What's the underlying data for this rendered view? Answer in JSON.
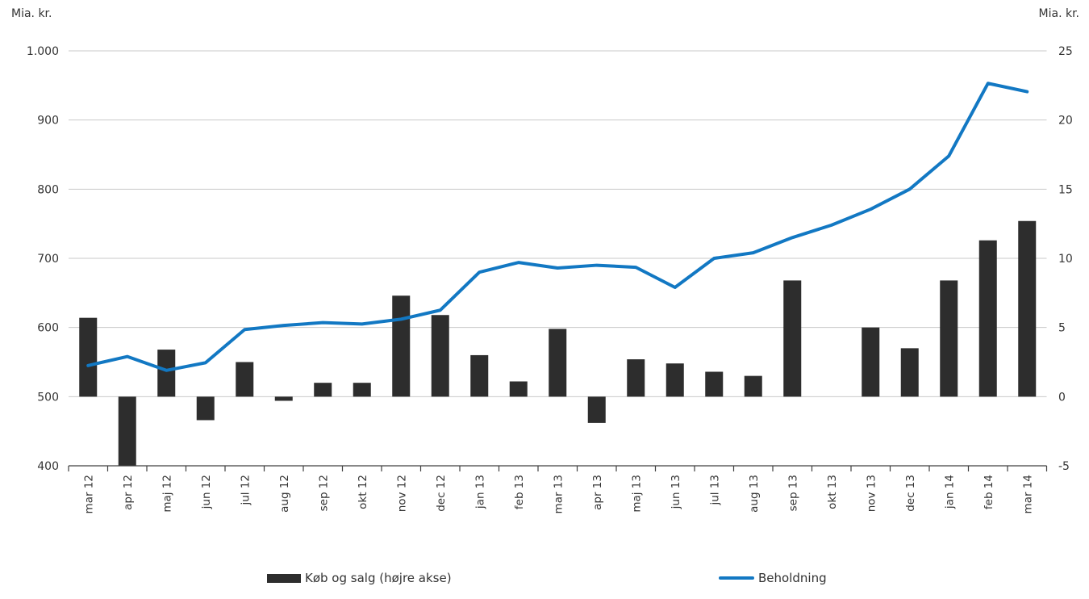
{
  "titles": {
    "left_axis_unit": "Mia. kr.",
    "right_axis_unit": "Mia. kr."
  },
  "legend": {
    "bars_label": "Køb og salg (højre akse)",
    "line_label": "Beholdning"
  },
  "colors": {
    "bar": "#2d2d2d",
    "line": "#1278c3",
    "gridline": "#c9c9c9",
    "axis": "#404040",
    "text": "#333333"
  },
  "chart_data": {
    "type": "bar",
    "subtype": "combo-bar-line",
    "title": "",
    "xlabel": "",
    "ylabel_left": "Mia. kr.",
    "ylabel_right": "Mia. kr.",
    "grid": "horizontal",
    "legend_position": "bottom",
    "categories": [
      "mar 12",
      "apr 12",
      "maj 12",
      "jun 12",
      "jul 12",
      "aug 12",
      "sep 12",
      "okt 12",
      "nov 12",
      "dec 12",
      "jan 13",
      "feb 13",
      "mar 13",
      "apr 13",
      "maj 13",
      "jun 13",
      "jul 13",
      "aug 13",
      "sep 13",
      "okt 13",
      "nov 13",
      "dec 13",
      "jan 14",
      "feb 14",
      "mar 14"
    ],
    "left_axis": {
      "min": 400,
      "max": 1000,
      "tick_step": 100,
      "tick_labels": [
        "1.000",
        "900",
        "800",
        "700",
        "600",
        "500",
        "400"
      ],
      "tick_values": [
        1000,
        900,
        800,
        700,
        600,
        500,
        400
      ]
    },
    "right_axis": {
      "min": -5,
      "max": 25,
      "tick_step": 5,
      "tick_labels": [
        "25",
        "20",
        "15",
        "10",
        "5",
        "0",
        "-5"
      ],
      "tick_values": [
        25,
        20,
        15,
        10,
        5,
        0,
        -5
      ]
    },
    "series": [
      {
        "name": "Køb og salg (højre akse)",
        "type": "bar",
        "axis": "right",
        "values": [
          5.7,
          -5.0,
          3.4,
          -1.7,
          2.5,
          -0.3,
          1.0,
          1.0,
          7.3,
          5.9,
          3.0,
          1.1,
          4.9,
          -1.9,
          2.7,
          2.4,
          1.8,
          1.5,
          8.4,
          0.0,
          5.0,
          3.5,
          8.4,
          11.3,
          12.7
        ]
      },
      {
        "name": "Beholdning",
        "type": "line",
        "axis": "left",
        "values": [
          545,
          558,
          538,
          549,
          597,
          603,
          607,
          605,
          612,
          625,
          680,
          694,
          686,
          690,
          687,
          658,
          700,
          708,
          730,
          748,
          771,
          800,
          848,
          953,
          941
        ]
      }
    ]
  }
}
